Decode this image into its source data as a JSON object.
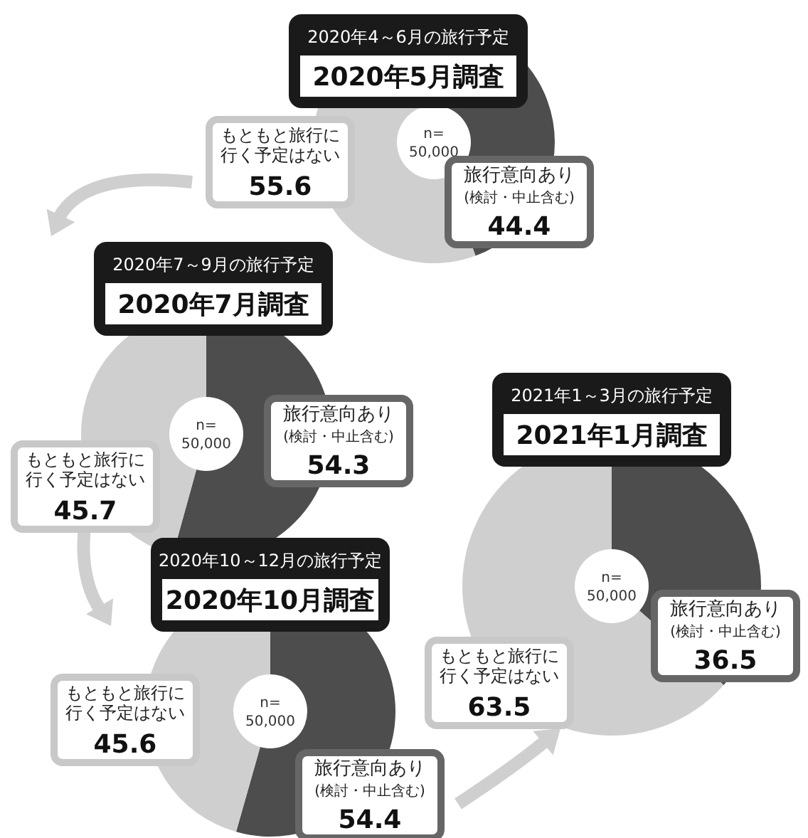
{
  "chart_data": [
    {
      "type": "donut",
      "subtitle": "2020年4～6月の旅行予定",
      "title": "2020年5月調査",
      "categories": [
        "旅行意向あり(検討・中止含む)",
        "もともと旅行に行く予定はない"
      ],
      "values": [
        44.4,
        55.6
      ],
      "colors": [
        "#4d4d4d",
        "#cfcfcf"
      ],
      "data_labels": true,
      "annotations": [
        "n=50,000"
      ]
    },
    {
      "type": "donut",
      "subtitle": "2020年7～9月の旅行予定",
      "title": "2020年7月調査",
      "categories": [
        "旅行意向あり(検討・中止含む)",
        "もともと旅行に行く予定はない"
      ],
      "values": [
        54.3,
        45.7
      ],
      "colors": [
        "#4d4d4d",
        "#cfcfcf"
      ],
      "data_labels": true,
      "annotations": [
        "n=50,000"
      ]
    },
    {
      "type": "donut",
      "subtitle": "2020年10～12月の旅行予定",
      "title": "2020年10月調査",
      "categories": [
        "旅行意向あり(検討・中止含む)",
        "もともと旅行に行く予定はない"
      ],
      "values": [
        54.4,
        45.6
      ],
      "colors": [
        "#4d4d4d",
        "#cfcfcf"
      ],
      "data_labels": true,
      "annotations": [
        "n=50,000"
      ]
    },
    {
      "type": "donut",
      "subtitle": "2021年1～3月の旅行予定",
      "title": "2021年1月調査",
      "categories": [
        "旅行意向あり(検討・中止含む)",
        "もともと旅行に行く予定はない"
      ],
      "values": [
        36.5,
        63.5
      ],
      "colors": [
        "#4d4d4d",
        "#cfcfcf"
      ],
      "data_labels": true,
      "annotations": [
        "n=50,000"
      ]
    }
  ]
}
